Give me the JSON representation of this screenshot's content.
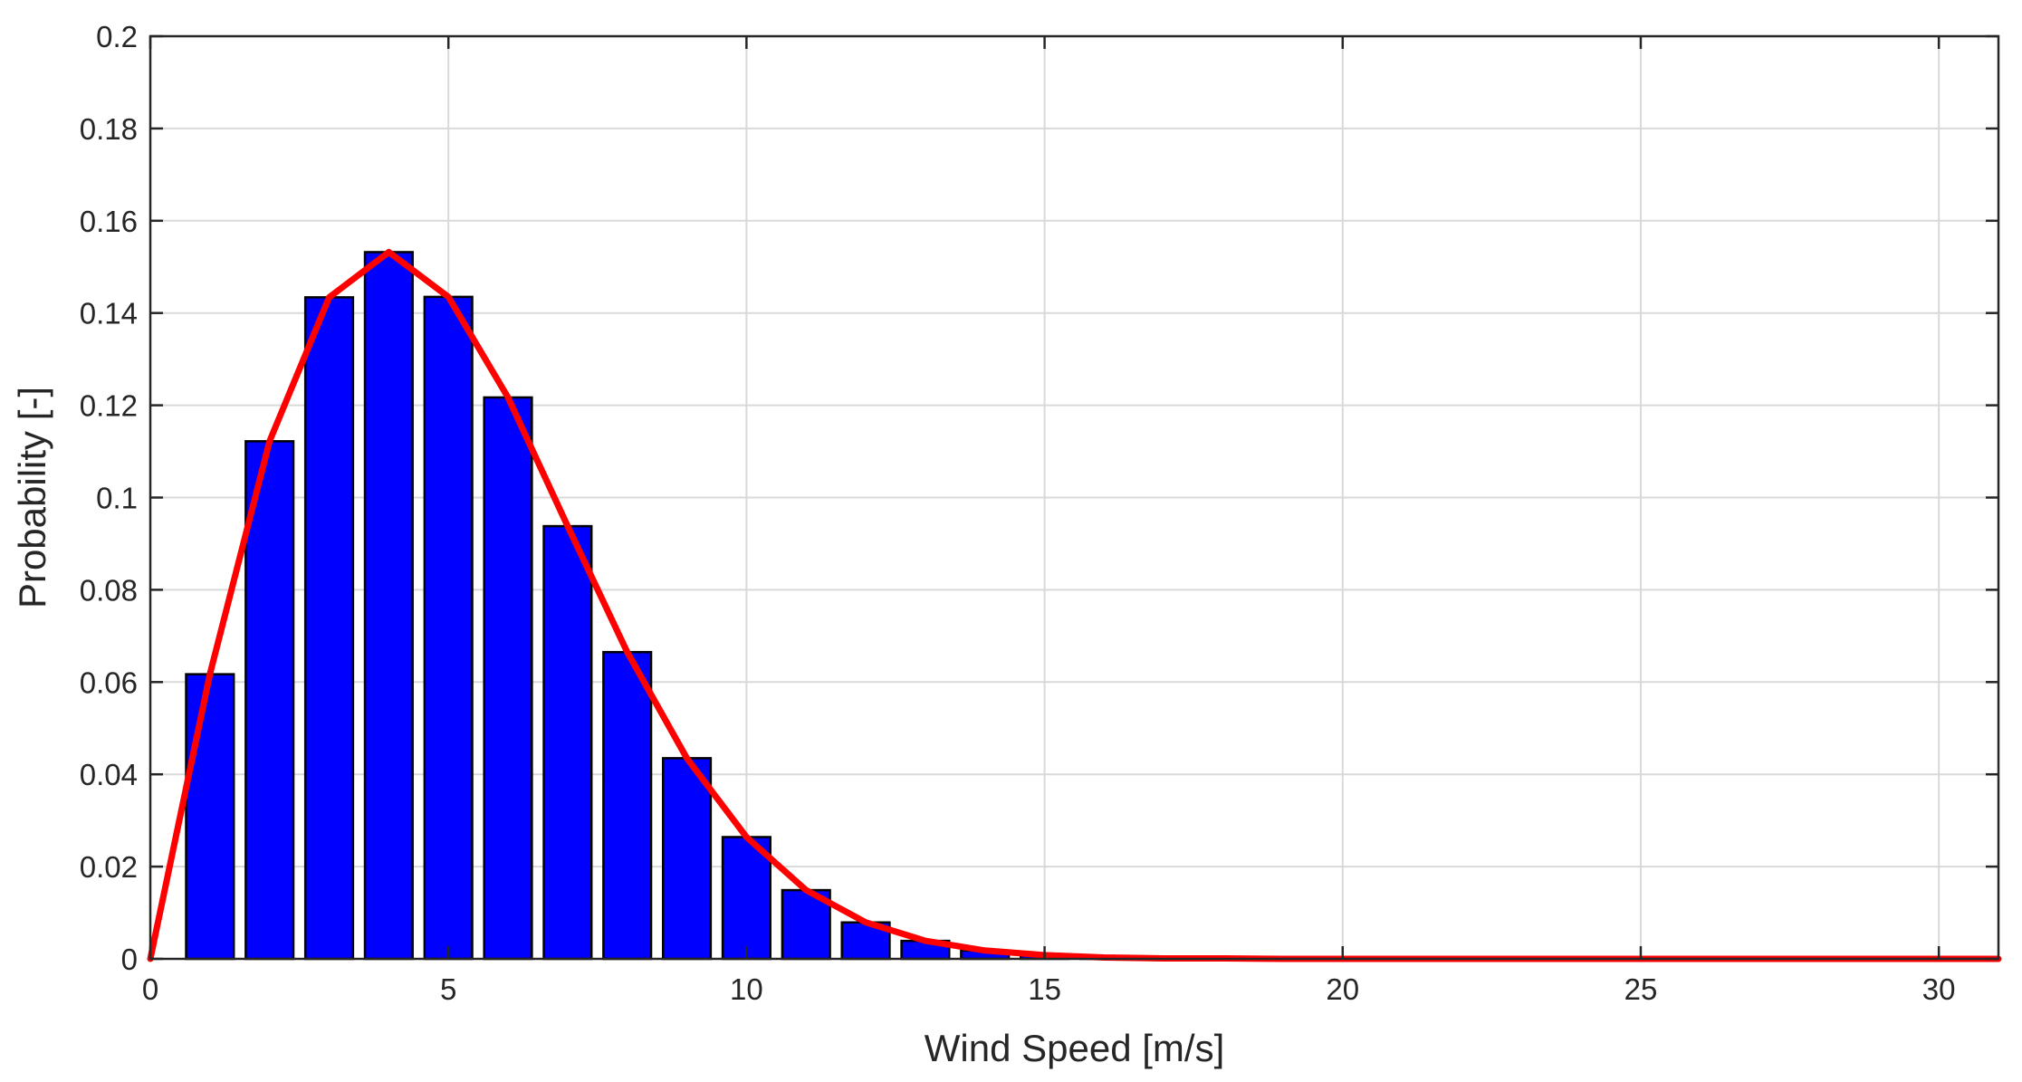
{
  "chart_data": {
    "type": "bar",
    "title": "",
    "xlabel": "Wind Speed [m/s]",
    "ylabel": "Probability [-]",
    "xlim": [
      0,
      31
    ],
    "ylim": [
      0,
      0.2
    ],
    "grid": true,
    "x_ticks": [
      0,
      5,
      10,
      15,
      20,
      25,
      30
    ],
    "x_tick_labels": [
      "0",
      "5",
      "10",
      "15",
      "20",
      "25",
      "30"
    ],
    "y_ticks": [
      0,
      0.02,
      0.04,
      0.06,
      0.08,
      0.1,
      0.12,
      0.14,
      0.16,
      0.18,
      0.2
    ],
    "y_tick_labels": [
      "0",
      "0.02",
      "0.04",
      "0.06",
      "0.08",
      "0.1",
      "0.12",
      "0.14",
      "0.16",
      "0.18",
      "0.2"
    ],
    "bar_width": 0.8,
    "colors": {
      "bars": "#0000ff",
      "bar_edge": "#000000",
      "line": "#ff0000"
    },
    "series": [
      {
        "type": "bar",
        "x": [
          1,
          2,
          3,
          4,
          5,
          6,
          7,
          8,
          9,
          10,
          11,
          12,
          13,
          14,
          15,
          16,
          17,
          18,
          19,
          20,
          21,
          22,
          23,
          24,
          25,
          26,
          27,
          28,
          29,
          30,
          31
        ],
        "values": [
          0.0617,
          0.1122,
          0.1434,
          0.1532,
          0.1435,
          0.1217,
          0.0938,
          0.0665,
          0.0435,
          0.0264,
          0.0149,
          0.0079,
          0.0039,
          0.0018,
          0.0008,
          0.0003,
          0.0001,
          0.0001,
          0,
          0,
          0,
          0,
          0,
          0,
          0,
          0,
          0,
          0,
          0,
          0,
          0
        ]
      },
      {
        "type": "line",
        "x": [
          0,
          1,
          2,
          3,
          4,
          5,
          6,
          7,
          8,
          9,
          10,
          11,
          12,
          13,
          14,
          15,
          16,
          17,
          18,
          19,
          20,
          21,
          22,
          23,
          24,
          25,
          26,
          27,
          28,
          29,
          30,
          31
        ],
        "values": [
          0,
          0.0617,
          0.1122,
          0.1434,
          0.1532,
          0.1435,
          0.1217,
          0.0938,
          0.0665,
          0.0435,
          0.0264,
          0.0149,
          0.0079,
          0.0039,
          0.0018,
          0.0008,
          0.0003,
          0.0001,
          0.0001,
          0,
          0,
          0,
          0,
          0,
          0,
          0,
          0,
          0,
          0,
          0,
          0,
          0
        ]
      }
    ]
  }
}
